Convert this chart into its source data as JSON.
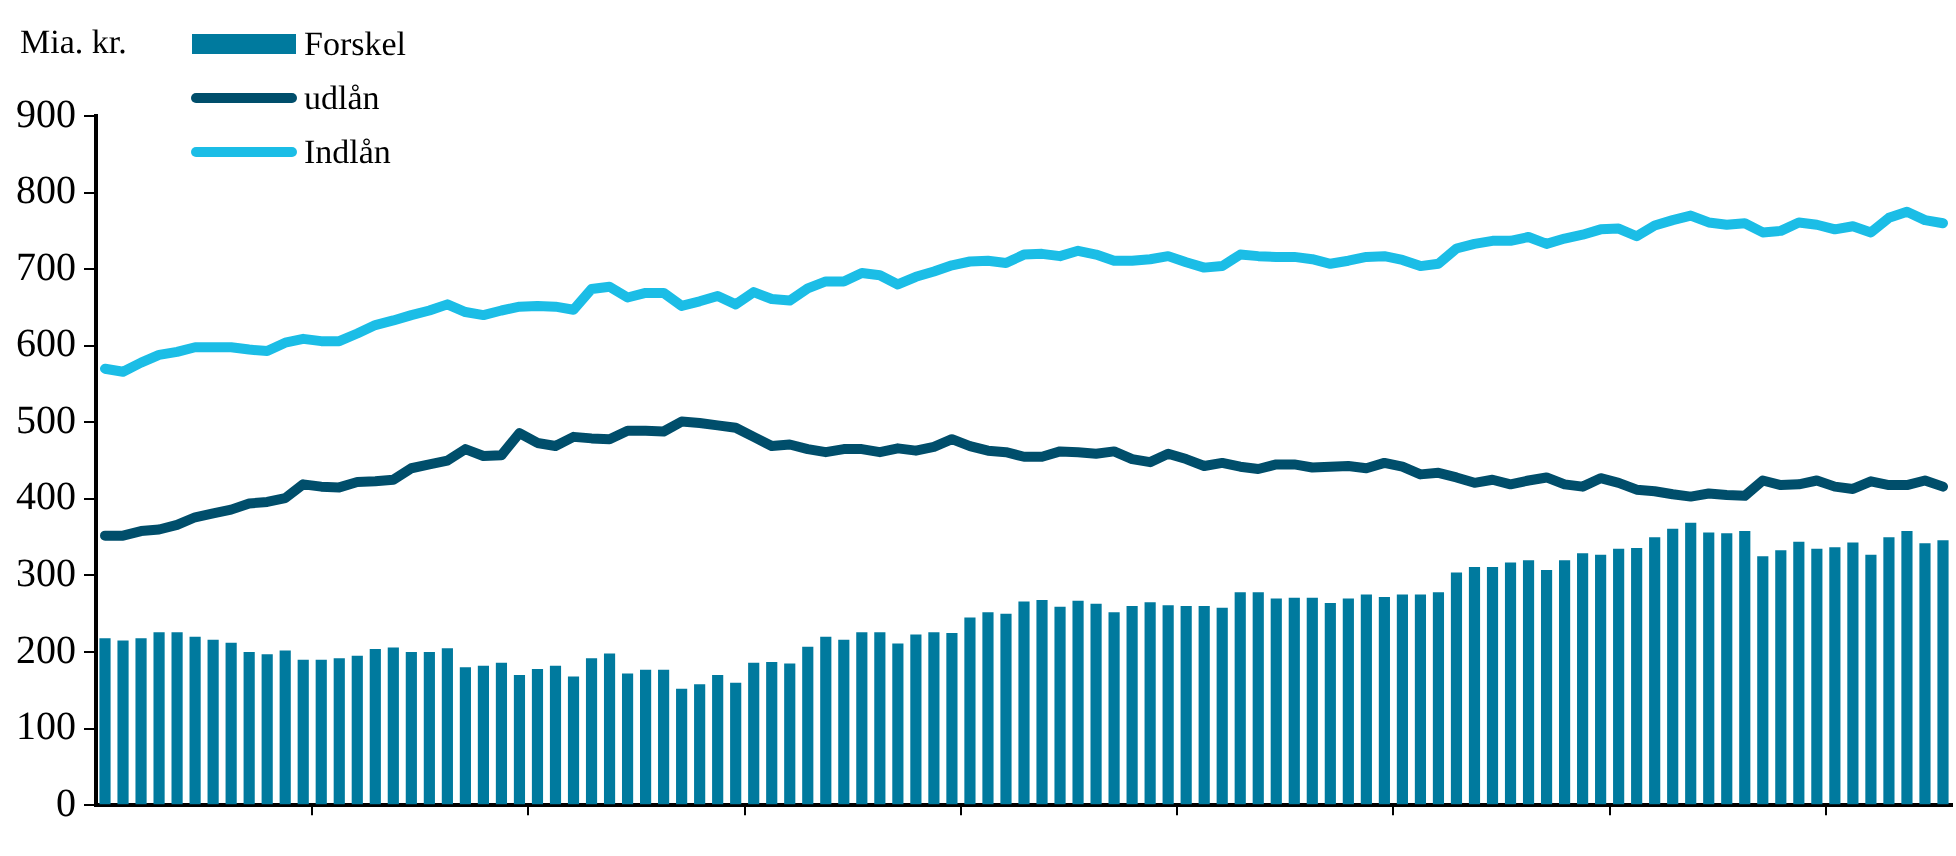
{
  "chart_data": {
    "type": "bar",
    "ylabel": "Mia. kr.",
    "legend": "top left",
    "grid": false,
    "marker": "none",
    "categories": [
      null,
      null,
      null,
      null,
      null,
      null,
      null,
      null,
      null,
      null,
      null,
      null,
      null,
      null,
      null,
      null,
      null,
      null,
      null,
      null,
      null,
      null,
      null,
      null,
      null,
      null,
      null,
      null,
      null,
      null,
      null,
      null,
      null,
      null,
      null,
      null,
      null,
      null,
      null,
      null,
      null,
      null,
      null,
      null,
      null,
      null,
      null,
      null,
      null,
      null,
      null,
      null,
      null,
      null,
      null,
      null,
      null,
      null,
      null,
      null,
      null,
      null,
      null,
      null,
      null,
      null,
      null,
      null,
      null,
      null,
      null,
      null,
      null,
      null,
      null,
      null,
      null,
      null,
      null,
      null,
      null,
      null,
      null,
      null,
      null,
      null,
      null,
      null,
      null,
      null,
      null,
      null,
      null,
      null,
      null,
      null,
      null,
      null,
      null,
      null,
      null,
      null,
      null
    ],
    "ylim": [
      0,
      900
    ],
    "yticks": [
      0,
      100,
      200,
      300,
      400,
      500,
      600,
      700,
      800,
      900
    ],
    "series": [
      {
        "name": "Forskel",
        "color": "#007a9e",
        "values": [
          218,
          215,
          218,
          226,
          226,
          220,
          216,
          212,
          200,
          197,
          202,
          190,
          190,
          192,
          195,
          204,
          206,
          200,
          200,
          205,
          180,
          182,
          186,
          170,
          178,
          182,
          168,
          192,
          198,
          172,
          177,
          177,
          152,
          158,
          170,
          160,
          186,
          187,
          185,
          207,
          220,
          216,
          226,
          226,
          211,
          223,
          226,
          225,
          245,
          252,
          250,
          266,
          268,
          259,
          267,
          263,
          252,
          260,
          265,
          261,
          260,
          260,
          258,
          278,
          278,
          270,
          271,
          271,
          264,
          270,
          275,
          272,
          275,
          275,
          278,
          304,
          311,
          311,
          317,
          320,
          307,
          320,
          329,
          327,
          335,
          336,
          350,
          361,
          369,
          356,
          355,
          358,
          325,
          333,
          344,
          335,
          337,
          343,
          327,
          350,
          358,
          342,
          346
        ]
      },
      {
        "name": "udlån",
        "type": "line",
        "color": "#004e6b",
        "values": [
          352,
          352,
          358,
          360,
          366,
          376,
          381,
          386,
          394,
          396,
          401,
          419,
          416,
          415,
          422,
          423,
          425,
          440,
          445,
          450,
          465,
          456,
          457,
          486,
          473,
          469,
          481,
          479,
          478,
          489,
          489,
          488,
          501,
          499,
          496,
          493,
          481,
          469,
          471,
          465,
          461,
          465,
          465,
          461,
          466,
          463,
          468,
          478,
          469,
          463,
          461,
          455,
          455,
          462,
          461,
          459,
          462,
          452,
          448,
          459,
          452,
          443,
          447,
          442,
          439,
          445,
          445,
          441,
          442,
          443,
          440,
          447,
          442,
          432,
          434,
          428,
          421,
          425,
          419,
          424,
          428,
          419,
          416,
          427,
          421,
          412,
          410,
          406,
          403,
          407,
          405,
          404,
          424,
          418,
          419,
          424,
          416,
          413,
          423,
          418,
          418,
          424,
          416
        ]
      },
      {
        "name": "Indlån",
        "type": "line",
        "color": "#1bbde6",
        "values": [
          570,
          566,
          578,
          588,
          592,
          598,
          598,
          598,
          595,
          593,
          604,
          609,
          606,
          606,
          616,
          627,
          633,
          640,
          646,
          654,
          644,
          640,
          646,
          651,
          652,
          651,
          647,
          674,
          677,
          663,
          669,
          669,
          652,
          658,
          665,
          654,
          670,
          661,
          659,
          675,
          684,
          684,
          695,
          692,
          680,
          690,
          697,
          705,
          710,
          711,
          708,
          719,
          720,
          717,
          724,
          719,
          711,
          711,
          713,
          717,
          709,
          702,
          704,
          719,
          717,
          716,
          716,
          713,
          707,
          711,
          716,
          717,
          712,
          704,
          707,
          727,
          733,
          737,
          737,
          742,
          733,
          740,
          745,
          752,
          753,
          743,
          757,
          764,
          770,
          761,
          758,
          760,
          748,
          750,
          761,
          758,
          752,
          756,
          748,
          767,
          775,
          764,
          760
        ]
      }
    ]
  }
}
